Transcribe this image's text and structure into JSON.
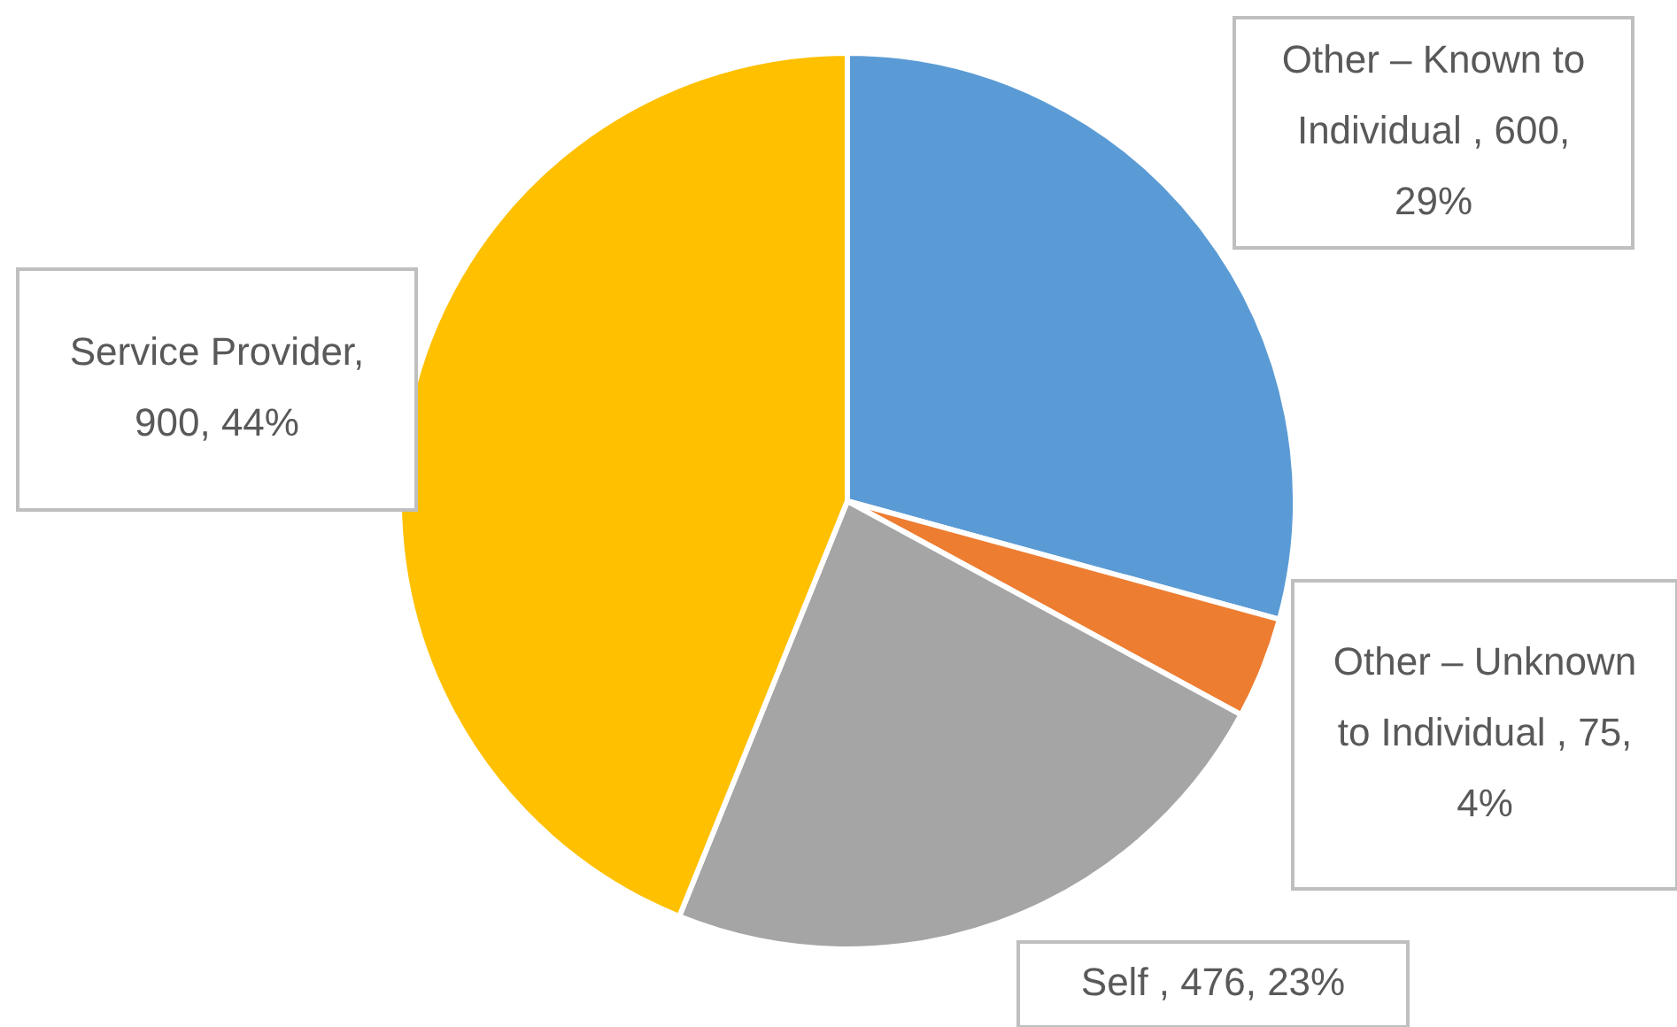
{
  "chart_data": {
    "type": "pie",
    "categories": [
      "Other – Known to Individual",
      "Other – Unknown to Individual",
      "Self",
      "Service Provider"
    ],
    "values": [
      600,
      75,
      476,
      900
    ],
    "colors": [
      "#5b9bd5",
      "#ed7d31",
      "#a5a5a5",
      "#ffc000"
    ],
    "value_labels": [
      " , 600, 29%",
      " , 75, 4%",
      " , 476, 23%",
      ", 900, 44%"
    ],
    "legend": false
  }
}
